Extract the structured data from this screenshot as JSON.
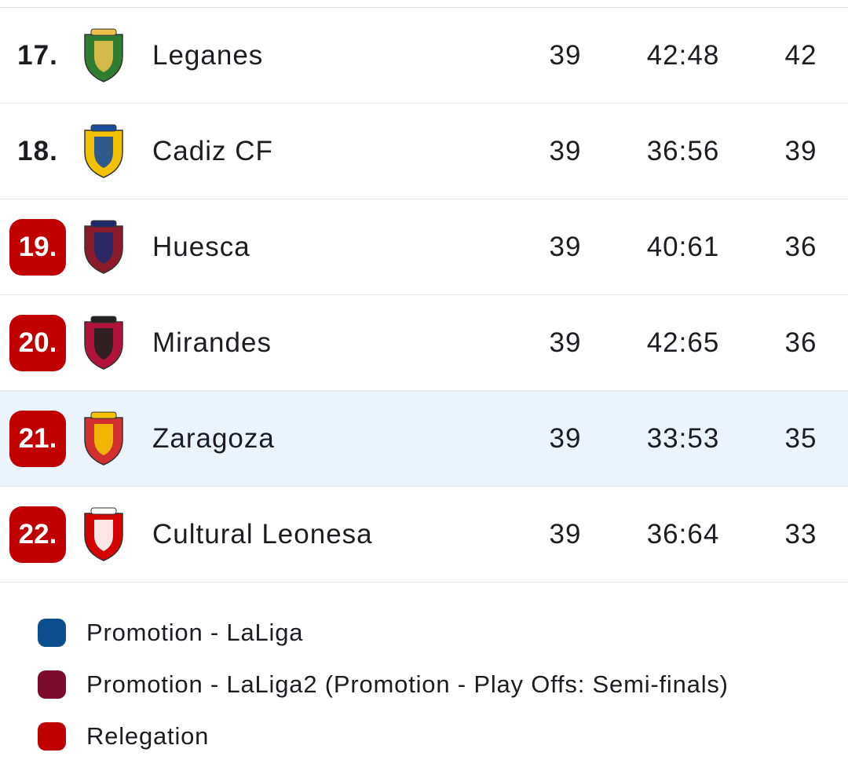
{
  "table": {
    "rows": [
      {
        "rank": "17.",
        "team": "Leganes",
        "played": 39,
        "goals": "42:48",
        "points": 42,
        "badge_color": null,
        "highlight": false,
        "crest_colors": [
          "#2e7d32",
          "#e8c04a"
        ]
      },
      {
        "rank": "18.",
        "team": "Cadiz CF",
        "played": 39,
        "goals": "36:56",
        "points": 39,
        "badge_color": null,
        "highlight": false,
        "crest_colors": [
          "#f2c200",
          "#1a4f9c"
        ]
      },
      {
        "rank": "19.",
        "team": "Huesca",
        "played": 39,
        "goals": "40:61",
        "points": 36,
        "badge_color": "#c00000",
        "highlight": false,
        "crest_colors": [
          "#8b1a2b",
          "#1f2a6b"
        ]
      },
      {
        "rank": "20.",
        "team": "Mirandes",
        "played": 39,
        "goals": "42:65",
        "points": 36,
        "badge_color": "#c00000",
        "highlight": false,
        "crest_colors": [
          "#b0123a",
          "#222222"
        ]
      },
      {
        "rank": "21.",
        "team": "Zaragoza",
        "played": 39,
        "goals": "33:53",
        "points": 35,
        "badge_color": "#c00000",
        "highlight": true,
        "crest_colors": [
          "#d32f2f",
          "#f3c300"
        ]
      },
      {
        "rank": "22.",
        "team": "Cultural Leonesa",
        "played": 39,
        "goals": "36:64",
        "points": 33,
        "badge_color": "#c00000",
        "highlight": false,
        "crest_colors": [
          "#d50000",
          "#ffffff"
        ]
      }
    ]
  },
  "legend": [
    {
      "label": "Promotion - LaLiga",
      "color": "#0b4f8f"
    },
    {
      "label": "Promotion - LaLiga2 (Promotion - Play Offs: Semi-finals)",
      "color": "#7b0a2c"
    },
    {
      "label": "Relegation",
      "color": "#c00000"
    }
  ]
}
